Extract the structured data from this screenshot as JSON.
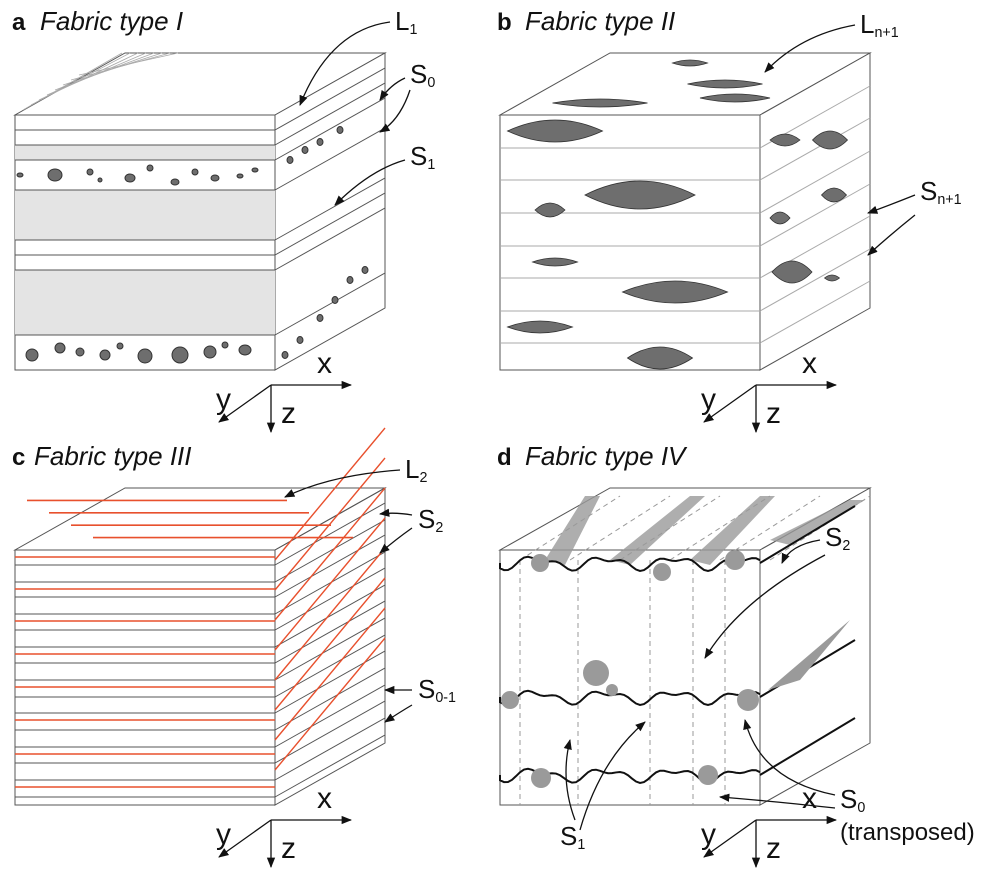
{
  "panels": [
    {
      "letter": "a",
      "title": "Fabric type I",
      "labels": [
        {
          "main": "L",
          "sub": "1"
        },
        {
          "main": "S",
          "sub": "0"
        },
        {
          "main": "S",
          "sub": "1"
        }
      ],
      "axes": {
        "x": "x",
        "y": "y",
        "z": "z"
      }
    },
    {
      "letter": "b",
      "title": "Fabric type II",
      "labels": [
        {
          "main": "L",
          "sub": "n+1"
        },
        {
          "main": "S",
          "sub": "n+1"
        }
      ],
      "axes": {
        "x": "x",
        "y": "y",
        "z": "z"
      }
    },
    {
      "letter": "c",
      "title": "Fabric type III",
      "labels": [
        {
          "main": "L",
          "sub": "2"
        },
        {
          "main": "S",
          "sub": "2"
        },
        {
          "main": "S",
          "sub": "0-1"
        }
      ],
      "axes": {
        "x": "x",
        "y": "y",
        "z": "z"
      }
    },
    {
      "letter": "d",
      "title": "Fabric type IV",
      "labels": [
        {
          "main": "S",
          "sub": "2"
        },
        {
          "main": "S",
          "sub": "0"
        },
        {
          "main": "(transposed)",
          "sub": ""
        },
        {
          "main": "S",
          "sub": "1"
        }
      ],
      "axes": {
        "x": "x",
        "y": "y",
        "z": "z"
      }
    }
  ]
}
